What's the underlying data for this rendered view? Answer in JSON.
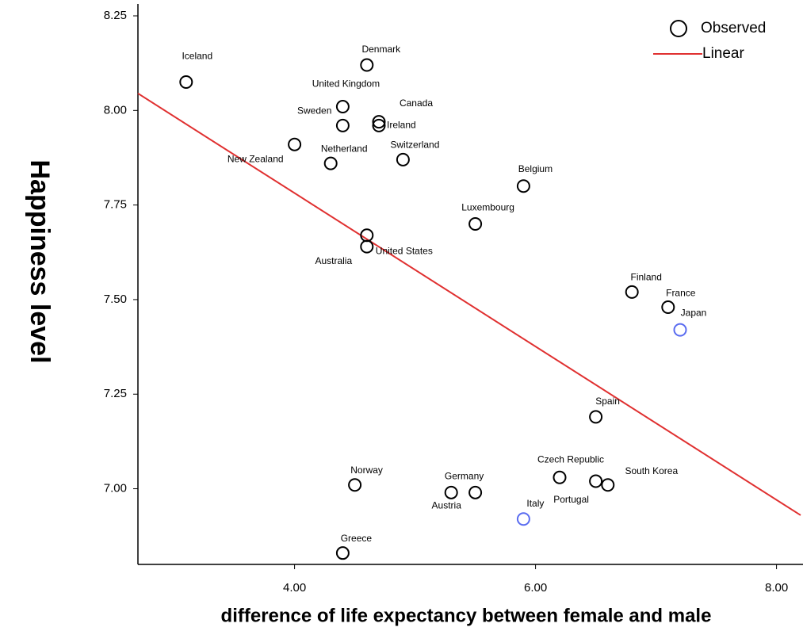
{
  "chart_data": {
    "type": "scatter",
    "x_label": "difference of life expectancy between female and male",
    "y_label": "Happiness level",
    "xlim": [
      2.7,
      8.2
    ],
    "ylim": [
      6.8,
      8.25
    ],
    "xticks": [
      {
        "value": 4,
        "label": "4.00"
      },
      {
        "value": 6,
        "label": "6.00"
      },
      {
        "value": 8,
        "label": "8.00"
      }
    ],
    "yticks": [
      {
        "value": 7,
        "label": "7.00"
      },
      {
        "value": 7.25,
        "label": "7.25"
      },
      {
        "value": 7.5,
        "label": "7.50"
      },
      {
        "value": 7.75,
        "label": "7.75"
      },
      {
        "value": 8,
        "label": "8.00"
      },
      {
        "value": 8.25,
        "label": "8.25"
      }
    ],
    "legend": "upper right",
    "series": [
      {
        "name": "Observed",
        "color": "#000000",
        "labels": [
          "Iceland",
          "Denmark",
          "United Kingdom",
          "Sweden",
          "Canada",
          "Ireland",
          "New Zealand",
          "Netherland",
          "Switzerland",
          "Belgium",
          "Luxembourg",
          "Australia",
          "United States",
          "Finland",
          "France",
          "Japan",
          "Spain",
          "Czech Republic",
          "Portugal",
          "South Korea",
          "Norway",
          "Germany",
          "Austria",
          "Italy",
          "Greece"
        ],
        "x": [
          3.1,
          4.6,
          4.4,
          4.4,
          4.7,
          4.7,
          4.0,
          4.3,
          4.9,
          5.9,
          5.5,
          4.6,
          4.6,
          6.8,
          7.1,
          7.2,
          6.5,
          6.2,
          6.5,
          6.6,
          4.5,
          5.5,
          5.3,
          5.9,
          4.4
        ],
        "values": [
          8.075,
          8.12,
          8.01,
          7.96,
          7.97,
          7.96,
          7.91,
          7.86,
          7.87,
          7.8,
          7.7,
          7.67,
          7.64,
          7.52,
          7.48,
          7.42,
          7.19,
          7.03,
          7.02,
          7.01,
          7.01,
          6.99,
          6.99,
          6.92,
          6.83
        ],
        "point_colors": [
          "#000000",
          "#000000",
          "#000000",
          "#000000",
          "#000000",
          "#000000",
          "#000000",
          "#000000",
          "#000000",
          "#000000",
          "#000000",
          "#000000",
          "#000000",
          "#000000",
          "#000000",
          "#5a6cf0",
          "#000000",
          "#000000",
          "#000000",
          "#000000",
          "#000000",
          "#000000",
          "#000000",
          "#5a6cf0",
          "#000000"
        ]
      },
      {
        "name": "Linear",
        "color": "#e03030",
        "x": [
          2.7,
          8.2
        ],
        "values": [
          8.045,
          6.93
        ]
      }
    ]
  }
}
